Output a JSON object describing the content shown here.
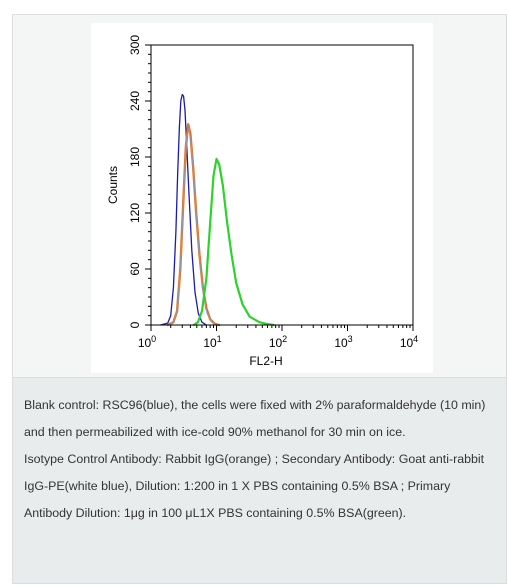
{
  "chart_data": {
    "type": "line",
    "xlabel": "FL2-H",
    "ylabel": "Counts",
    "x_scale": "log",
    "xlim": [
      1,
      10000
    ],
    "ylim": [
      0,
      300
    ],
    "x_ticks": [
      {
        "value": 1,
        "base": "10",
        "exp": "0"
      },
      {
        "value": 10,
        "base": "10",
        "exp": "1"
      },
      {
        "value": 100,
        "base": "10",
        "exp": "2"
      },
      {
        "value": 1000,
        "base": "10",
        "exp": "3"
      },
      {
        "value": 10000,
        "base": "10",
        "exp": "4"
      }
    ],
    "y_ticks": [
      "0",
      "60",
      "120",
      "180",
      "240",
      "300"
    ],
    "y_tick_values": [
      0,
      60,
      120,
      180,
      240,
      300
    ],
    "grid": false,
    "legend": "none",
    "series": [
      {
        "color": "#1c1ca8",
        "width": 1.3,
        "points": [
          [
            1.4,
            0
          ],
          [
            1.8,
            2
          ],
          [
            2.0,
            10
          ],
          [
            2.2,
            40
          ],
          [
            2.4,
            100
          ],
          [
            2.55,
            160
          ],
          [
            2.7,
            210
          ],
          [
            2.85,
            240
          ],
          [
            3.0,
            247
          ],
          [
            3.15,
            245
          ],
          [
            3.3,
            230
          ],
          [
            3.5,
            195
          ],
          [
            3.8,
            140
          ],
          [
            4.2,
            80
          ],
          [
            4.7,
            35
          ],
          [
            5.3,
            12
          ],
          [
            6.0,
            3
          ],
          [
            7.0,
            0
          ]
        ]
      },
      {
        "color": "#e07428",
        "width": 2.4,
        "points": [
          [
            1.8,
            0
          ],
          [
            2.2,
            3
          ],
          [
            2.5,
            15
          ],
          [
            2.8,
            60
          ],
          [
            3.1,
            130
          ],
          [
            3.4,
            190
          ],
          [
            3.7,
            215
          ],
          [
            4.0,
            205
          ],
          [
            4.4,
            170
          ],
          [
            4.9,
            120
          ],
          [
            5.5,
            75
          ],
          [
            6.2,
            40
          ],
          [
            7.0,
            18
          ],
          [
            8.0,
            6
          ],
          [
            9.5,
            1
          ],
          [
            11,
            0
          ]
        ]
      },
      {
        "color": "#8c9bb4",
        "width": 1.0,
        "points": [
          [
            1.9,
            0
          ],
          [
            2.3,
            5
          ],
          [
            2.6,
            25
          ],
          [
            2.9,
            80
          ],
          [
            3.2,
            150
          ],
          [
            3.5,
            200
          ],
          [
            3.8,
            210
          ],
          [
            4.1,
            195
          ],
          [
            4.5,
            160
          ],
          [
            5.0,
            110
          ],
          [
            5.6,
            65
          ],
          [
            6.3,
            32
          ],
          [
            7.2,
            12
          ],
          [
            8.5,
            3
          ],
          [
            10,
            0
          ]
        ]
      },
      {
        "color": "#2bd32b",
        "width": 2.2,
        "points": [
          [
            4.5,
            0
          ],
          [
            5.2,
            3
          ],
          [
            6.0,
            15
          ],
          [
            7.0,
            50
          ],
          [
            8.0,
            110
          ],
          [
            9.0,
            160
          ],
          [
            10.0,
            178
          ],
          [
            11.0,
            172
          ],
          [
            12.5,
            150
          ],
          [
            14.5,
            110
          ],
          [
            17,
            75
          ],
          [
            20,
            45
          ],
          [
            25,
            22
          ],
          [
            32,
            9
          ],
          [
            45,
            3
          ],
          [
            60,
            1
          ],
          [
            75,
            0
          ]
        ]
      }
    ]
  },
  "caption": {
    "paragraphs": [
      "Blank control: RSC96(blue), the cells were fixed with 2% paraformaldehyde (10 min) and then permeabilized with ice-cold 90% methanol for 30 min on ice.",
      "Isotype Control Antibody: Rabbit IgG(orange) ; Secondary Antibody: Goat anti-rabbit IgG-PE(white blue), Dilution: 1:200 in 1 X PBS containing 0.5% BSA ; Primary Antibody Dilution: 1μg in 100 μL1X PBS containing 0.5% BSA(green)."
    ]
  }
}
